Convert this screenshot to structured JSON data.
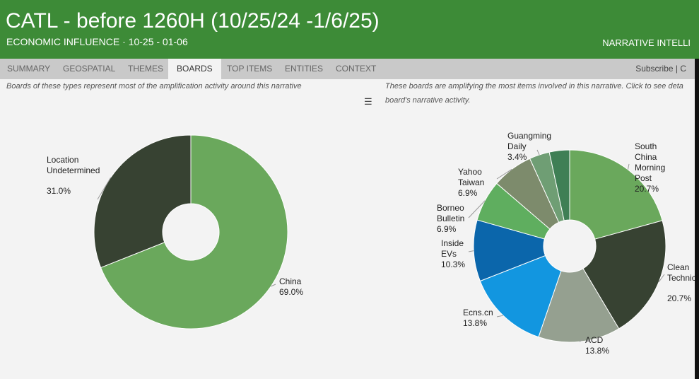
{
  "header": {
    "title": "CATL - before 1260H (10/25/24 -1/6/25)",
    "subtitle": "ECONOMIC INFLUENCE · 10-25 - 01-06",
    "brand": "NARRATIVE INTELLI"
  },
  "tabs": [
    {
      "label": "SUMMARY"
    },
    {
      "label": "GEOSPATIAL"
    },
    {
      "label": "THEMES"
    },
    {
      "label": "BOARDS",
      "active": true
    },
    {
      "label": "TOP ITEMS"
    },
    {
      "label": "ENTITIES"
    },
    {
      "label": "CONTEXT"
    }
  ],
  "subscribe_label": "Subscribe | C",
  "left_desc": "Boards of these types represent most of the amplification activity around this narrative",
  "right_desc_line1": "These boards are amplifying the most items involved in this narrative. Click to see deta",
  "right_desc_line2": "board's narrative activity.",
  "menu_icon": "hamburger-menu-icon",
  "chart_data": [
    {
      "type": "pie",
      "donut": true,
      "slices": [
        {
          "label": [
            "China"
          ],
          "value_label": "69.0%",
          "value": 69.0,
          "color": "#6aa85c"
        },
        {
          "label": [
            "Location",
            "Undetermined"
          ],
          "value_label": "31.0%",
          "value": 31.0,
          "color": "#374232"
        }
      ]
    },
    {
      "type": "pie",
      "donut": true,
      "slices": [
        {
          "label": [
            "South",
            "China",
            "Morning",
            "Post"
          ],
          "value_label": "20.7%",
          "value": 20.7,
          "color": "#6aa85c"
        },
        {
          "label": [
            "Clean",
            "Technic"
          ],
          "value_label": "20.7%",
          "value": 20.7,
          "color": "#374232"
        },
        {
          "label": [
            "ACD"
          ],
          "value_label": "13.8%",
          "value": 13.8,
          "color": "#95a090"
        },
        {
          "label": [
            "Ecns.cn"
          ],
          "value_label": "13.8%",
          "value": 13.8,
          "color": "#1296e0"
        },
        {
          "label": [
            "Inside",
            "EVs"
          ],
          "value_label": "10.3%",
          "value": 10.3,
          "color": "#0b66ab"
        },
        {
          "label": [
            "Borneo",
            "Bulletin"
          ],
          "value_label": "6.9%",
          "value": 6.9,
          "color": "#5fae5f"
        },
        {
          "label": [
            "Yahoo",
            "Taiwan"
          ],
          "value_label": "6.9%",
          "value": 6.9,
          "color": "#7d8b6c"
        },
        {
          "label": [
            "Guangming",
            "Daily"
          ],
          "value_label": "3.4%",
          "value": 3.4,
          "color": "#6f9e74"
        },
        {
          "label": [],
          "value_label": "",
          "value": 3.4,
          "color": "#3f7f55"
        }
      ]
    }
  ]
}
